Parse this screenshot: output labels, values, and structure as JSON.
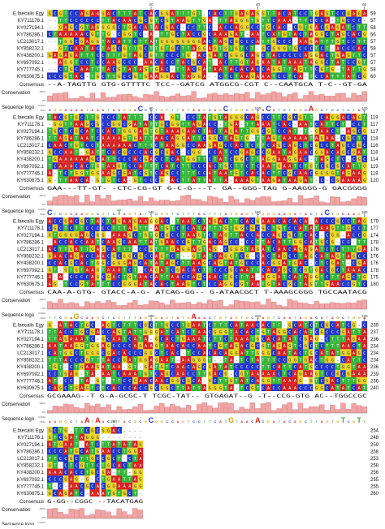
{
  "labels": {
    "consensus": "Consensus",
    "conservation": "Conservation",
    "sequence_logo": "Sequence logo",
    "pct_top": "100%",
    "pct_bottom": "0%",
    "bits_top": "2.0bits",
    "bits_bottom": "0bits"
  },
  "colors": {
    "A": "#d62020",
    "C": "#2035c8",
    "G": "#e8d22a",
    "T": "#36b43a",
    "gap": "#ffffff",
    "conservation_bar": "#f2a3a3",
    "conservation_edge": "#c46060"
  },
  "sequence_names": [
    "E.faecalis Egy",
    "KY711178.1",
    "KY027194.1",
    "KY786286.1",
    "LC213017.1",
    "KY858232.1",
    "KY438200.1",
    "KY697092.1",
    "KY777745.1",
    "KY630675.1"
  ],
  "blocks": [
    {
      "ruler": [
        "20",
        "40",
        "60"
      ],
      "end_positions": [
        "59",
        "57",
        "58",
        "56",
        "57",
        "58",
        "57",
        "57",
        "58",
        "60"
      ],
      "consensus": "--A-TAGTTG GTG-GTTTTC TCC--GATCG ATGGCG-CGT C--CAATGCA T-C--GT-GA"
    },
    {
      "ruler": [
        "80",
        "100",
        "120"
      ],
      "end_positions": [
        "119",
        "117",
        "117",
        "118",
        "116",
        "118",
        "114",
        "119",
        "118",
        "120"
      ],
      "consensus": "GAA---TT-GT- -CTC-CG-GT G-C-G---T- GA--GGG-TAG G-AAGGG-G GACGGGG"
    },
    {
      "ruler": [
        "140",
        "160",
        "180"
      ],
      "end_positions": [
        "179",
        "177",
        "174",
        "178",
        "176",
        "176",
        "176",
        "178",
        "175",
        "180"
      ],
      "consensus": "CAA-A-GTG- GTACC-A-G- ATCAG-GG-- G-ATAACGCT T-AAAGCGGG TGCCAATACG"
    },
    {
      "ruler": [
        "200",
        "220",
        "240"
      ],
      "end_positions": [
        "239",
        "237",
        "236",
        "234",
        "234",
        "234",
        "236",
        "239",
        "236",
        "240"
      ],
      "consensus": "GCGAAAG--T G-A-GCGC-T TCGC-TAT-- GTGAGAT--G -T--CCG-GTG AC--TGGCCGC"
    },
    {
      "ruler": [
        "260"
      ],
      "end_positions": [
        "254",
        "248",
        "259",
        "258",
        "253",
        "258",
        "256",
        "255",
        "255",
        "260"
      ],
      "consensus": "G-GG--CGGC --TACATGAG"
    }
  ]
}
